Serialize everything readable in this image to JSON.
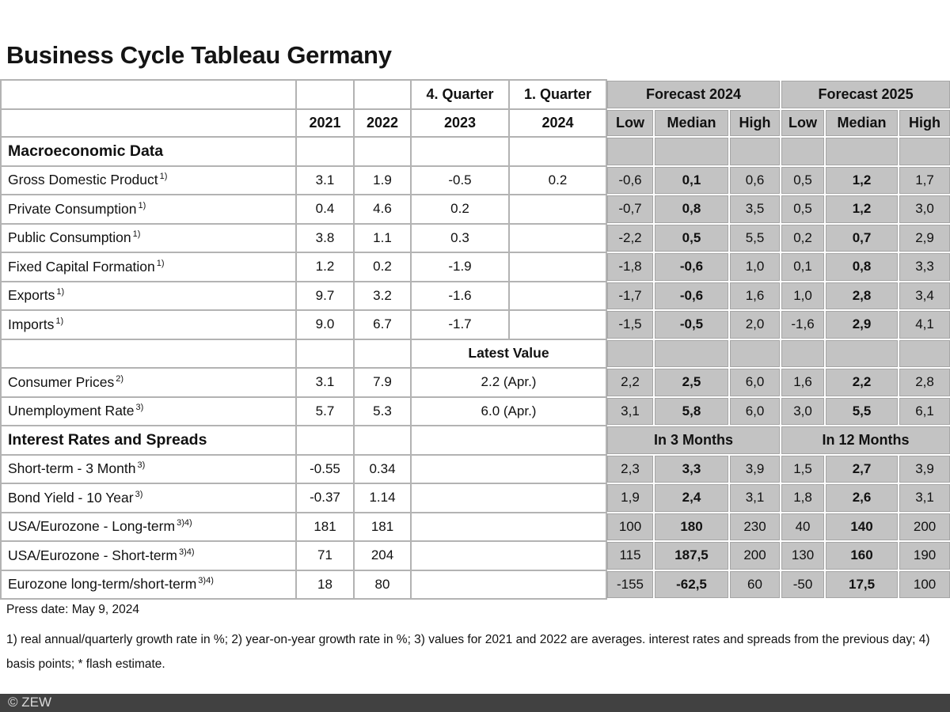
{
  "title": "Business Cycle Tableau Germany",
  "header": {
    "q4_label": "4. Quarter",
    "q1_label": "1. Quarter",
    "forecast_2024": "Forecast 2024",
    "forecast_2025": "Forecast 2025",
    "years": [
      "2021",
      "2022",
      "2023",
      "2024"
    ],
    "lmh": [
      "Low",
      "Median",
      "High",
      "Low",
      "Median",
      "High"
    ]
  },
  "rows": [
    {
      "type": "section",
      "label": "Macroeconomic Data"
    },
    {
      "type": "macro",
      "label": "Gross Domestic Product",
      "sup": "1)",
      "cells": [
        "3.1",
        "1.9",
        "-0.5",
        "0.2"
      ],
      "forecast": [
        "-0,6",
        "0,1",
        "0,6",
        "0,5",
        "1,2",
        "1,7"
      ]
    },
    {
      "type": "macro",
      "label": "Private Consumption",
      "sup": "1)",
      "cells": [
        "0.4",
        "4.6",
        "0.2",
        ""
      ],
      "forecast": [
        "-0,7",
        "0,8",
        "3,5",
        "0,5",
        "1,2",
        "3,0"
      ]
    },
    {
      "type": "macro",
      "label": "Public Consumption",
      "sup": "1)",
      "cells": [
        "3.8",
        "1.1",
        "0.3",
        ""
      ],
      "forecast": [
        "-2,2",
        "0,5",
        "5,5",
        "0,2",
        "0,7",
        "2,9"
      ]
    },
    {
      "type": "macro",
      "label": "Fixed Capital Formation",
      "sup": "1)",
      "cells": [
        "1.2",
        "0.2",
        "-1.9",
        ""
      ],
      "forecast": [
        "-1,8",
        "-0,6",
        "1,0",
        "0,1",
        "0,8",
        "3,3"
      ]
    },
    {
      "type": "macro",
      "label": "Exports",
      "sup": "1)",
      "cells": [
        "9.7",
        "3.2",
        "-1.6",
        ""
      ],
      "forecast": [
        "-1,7",
        "-0,6",
        "1,6",
        "1,0",
        "2,8",
        "3,4"
      ]
    },
    {
      "type": "macro",
      "label": "Imports",
      "sup": "1)",
      "cells": [
        "9.0",
        "6.7",
        "-1.7",
        ""
      ],
      "forecast": [
        "-1,5",
        "-0,5",
        "2,0",
        "-1,6",
        "2,9",
        "4,1"
      ]
    },
    {
      "type": "latest-header",
      "center_label": "Latest Value"
    },
    {
      "type": "latest",
      "label": "Consumer Prices",
      "sup": "2)",
      "y2021": "3.1",
      "y2022": "7.9",
      "latest": "2.2 (Apr.)",
      "forecast": [
        "2,2",
        "2,5",
        "6,0",
        "1,6",
        "2,2",
        "2,8"
      ]
    },
    {
      "type": "latest",
      "label": "Unemployment Rate",
      "sup": "3)",
      "y2021": "5.7",
      "y2022": "5.3",
      "latest": "6.0 (Apr.)",
      "forecast": [
        "3,1",
        "5,8",
        "6,0",
        "3,0",
        "5,5",
        "6,1"
      ]
    },
    {
      "type": "section-groups",
      "label": "Interest Rates and Spreads",
      "group1": "In 3 Months",
      "group2": "In 12 Months"
    },
    {
      "type": "rate",
      "label": "Short-term - 3 Month",
      "sup": "3)",
      "y2021": "-0.55",
      "y2022": "0.34",
      "forecast": [
        "2,3",
        "3,3",
        "3,9",
        "1,5",
        "2,7",
        "3,9"
      ]
    },
    {
      "type": "rate",
      "label": "Bond Yield - 10 Year",
      "sup": "3)",
      "y2021": "-0.37",
      "y2022": "1.14",
      "forecast": [
        "1,9",
        "2,4",
        "3,1",
        "1,8",
        "2,6",
        "3,1"
      ]
    },
    {
      "type": "rate",
      "label": "USA/Eurozone - Long-term",
      "sup": "3)4)",
      "y2021": "181",
      "y2022": "181",
      "forecast": [
        "100",
        "180",
        "230",
        "40",
        "140",
        "200"
      ]
    },
    {
      "type": "rate",
      "label": "USA/Eurozone - Short-term",
      "sup": "3)4)",
      "y2021": "71",
      "y2022": "204",
      "forecast": [
        "115",
        "187,5",
        "200",
        "130",
        "160",
        "190"
      ]
    },
    {
      "type": "rate",
      "label": "Eurozone long-term/short-term",
      "sup": "3)4)",
      "y2021": "18",
      "y2022": "80",
      "forecast": [
        "-155",
        "-62,5",
        "60",
        "-50",
        "17,5",
        "100"
      ]
    }
  ],
  "footer": {
    "press_date": "Press date: May 9, 2024",
    "footnotes": "1) real annual/quarterly growth rate in %; 2) year-on-year growth rate in %; 3) values for 2021 and 2022 are averages. interest rates and spreads from the previous day; 4) basis points; * flash estimate.",
    "copyright": "© ZEW"
  },
  "colors": {
    "cell_gray": "#c3c3c3",
    "grid_gray": "#b3b3b3",
    "cell_outline": "#a6a6a6",
    "bottom_bar": "#414141",
    "bottom_bar_text": "#d9d9d9"
  }
}
